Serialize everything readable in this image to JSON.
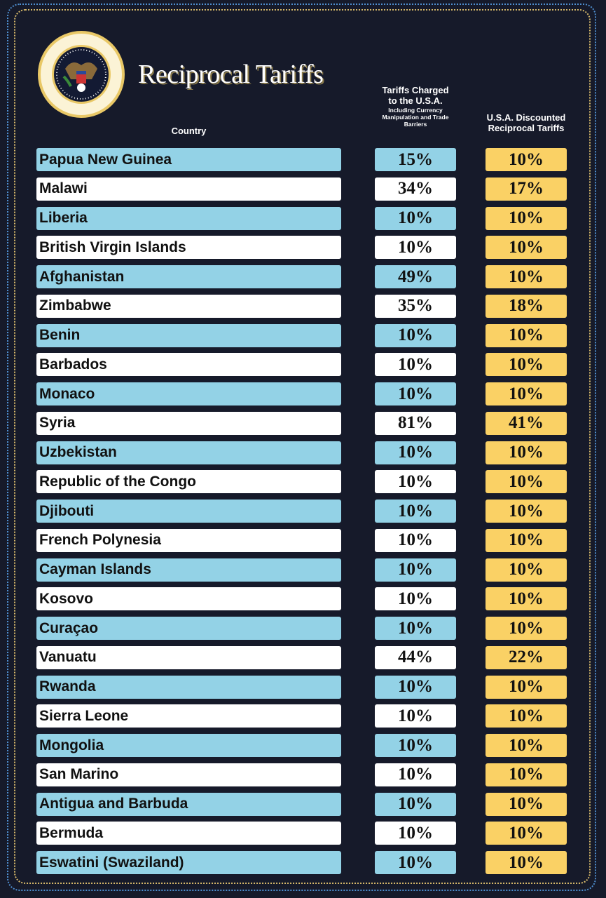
{
  "title": "Reciprocal Tariffs",
  "seal_text": "SEAL OF THE PRESIDENT OF THE UNITED STATES",
  "headers": {
    "country": "Country",
    "charged_main": "Tariffs Charged to the U.S.A.",
    "charged_sub": "Including Currency Manipulation and Trade Barriers",
    "reciprocal": "U.S.A. Discounted Reciprocal Tariffs"
  },
  "colors": {
    "row_blue": "#93d2e6",
    "row_white": "#ffffff",
    "reciprocal": "#fad165",
    "background": "#161a2a"
  },
  "chart_data": {
    "type": "table",
    "title": "Reciprocal Tariffs",
    "columns": [
      "Country",
      "Tariffs Charged to the U.S.A. Including Currency Manipulation and Trade Barriers",
      "U.S.A. Discounted Reciprocal Tariffs"
    ],
    "rows": [
      [
        "Papua New Guinea",
        "15%",
        "10%"
      ],
      [
        "Malawi",
        "34%",
        "17%"
      ],
      [
        "Liberia",
        "10%",
        "10%"
      ],
      [
        "British Virgin Islands",
        "10%",
        "10%"
      ],
      [
        "Afghanistan",
        "49%",
        "10%"
      ],
      [
        "Zimbabwe",
        "35%",
        "18%"
      ],
      [
        "Benin",
        "10%",
        "10%"
      ],
      [
        "Barbados",
        "10%",
        "10%"
      ],
      [
        "Monaco",
        "10%",
        "10%"
      ],
      [
        "Syria",
        "81%",
        "41%"
      ],
      [
        "Uzbekistan",
        "10%",
        "10%"
      ],
      [
        "Republic of the Congo",
        "10%",
        "10%"
      ],
      [
        "Djibouti",
        "10%",
        "10%"
      ],
      [
        "French Polynesia",
        "10%",
        "10%"
      ],
      [
        "Cayman Islands",
        "10%",
        "10%"
      ],
      [
        "Kosovo",
        "10%",
        "10%"
      ],
      [
        "Curaçao",
        "10%",
        "10%"
      ],
      [
        "Vanuatu",
        "44%",
        "22%"
      ],
      [
        "Rwanda",
        "10%",
        "10%"
      ],
      [
        "Sierra Leone",
        "10%",
        "10%"
      ],
      [
        "Mongolia",
        "10%",
        "10%"
      ],
      [
        "San Marino",
        "10%",
        "10%"
      ],
      [
        "Antigua and Barbuda",
        "10%",
        "10%"
      ],
      [
        "Bermuda",
        "10%",
        "10%"
      ],
      [
        "Eswatini (Swaziland)",
        "10%",
        "10%"
      ]
    ]
  }
}
